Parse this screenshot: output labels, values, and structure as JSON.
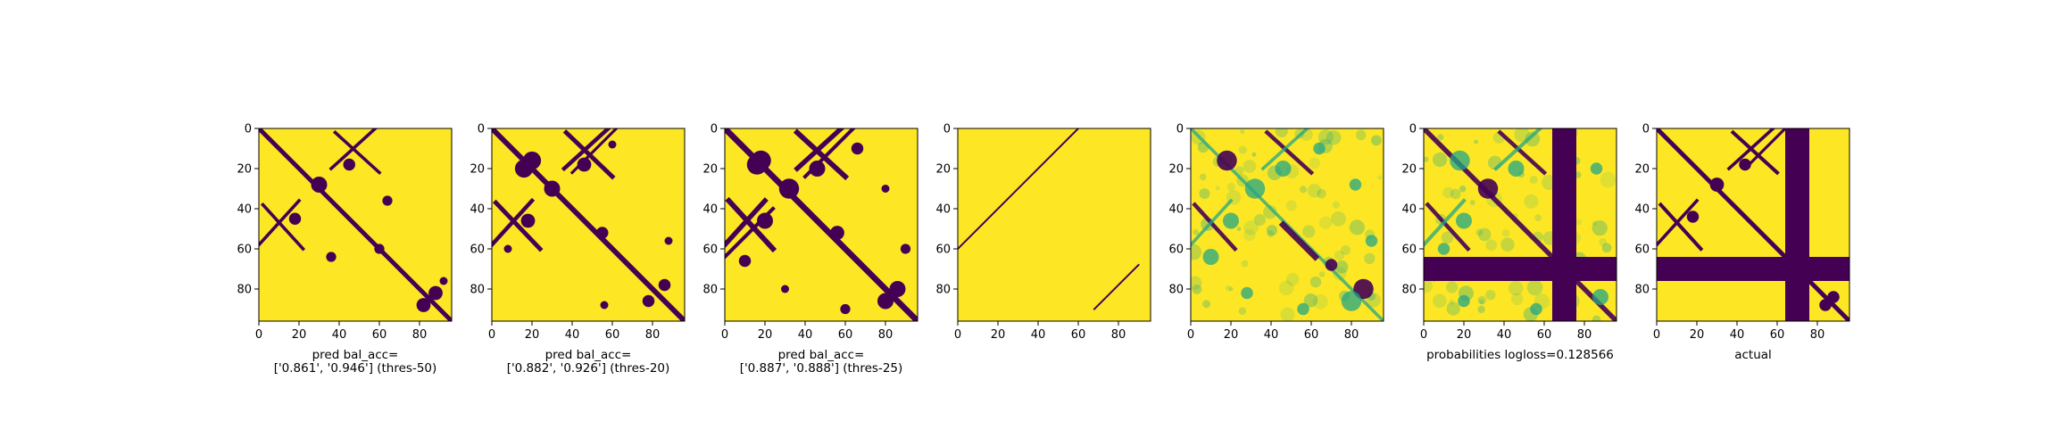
{
  "colors": {
    "low": "#440154",
    "mid": "#21a585",
    "high": "#fde725",
    "frame": "#000000"
  },
  "chart_data": [
    {
      "type": "heatmap",
      "kind": "binary",
      "caption_lines": [
        "pred bal_acc=",
        "['0.861', '0.946'] (thres-50)"
      ],
      "xlim": [
        0,
        96
      ],
      "ylim": [
        96,
        0
      ],
      "xticks": [
        "0",
        "20",
        "40",
        "60",
        "80"
      ],
      "yticks": [
        "0",
        "20",
        "40",
        "60",
        "80"
      ],
      "contacts": [
        {
          "type": "line",
          "from": [
            0,
            0
          ],
          "to": [
            96,
            96
          ],
          "width": 2.2
        },
        {
          "type": "line",
          "from": [
            38,
            2
          ],
          "to": [
            60,
            22
          ],
          "width": 1.6
        },
        {
          "type": "line",
          "from": [
            2,
            38
          ],
          "to": [
            22,
            60
          ],
          "width": 1.6
        },
        {
          "type": "line",
          "from": [
            36,
            20
          ],
          "to": [
            58,
            0
          ],
          "width": 1.6
        },
        {
          "type": "line",
          "from": [
            20,
            36
          ],
          "to": [
            0,
            58
          ],
          "width": 1.6
        },
        {
          "type": "blob",
          "c": [
            30,
            28
          ],
          "r": 4
        },
        {
          "type": "blob",
          "c": [
            45,
            18
          ],
          "r": 3
        },
        {
          "type": "blob",
          "c": [
            18,
            45
          ],
          "r": 3
        },
        {
          "type": "blob",
          "c": [
            60,
            60
          ],
          "r": 2.5
        },
        {
          "type": "blob",
          "c": [
            88,
            82
          ],
          "r": 3.5
        },
        {
          "type": "blob",
          "c": [
            82,
            88
          ],
          "r": 3.5
        },
        {
          "type": "blob",
          "c": [
            92,
            76
          ],
          "r": 2
        },
        {
          "type": "blob",
          "c": [
            64,
            36
          ],
          "r": 2.5
        },
        {
          "type": "blob",
          "c": [
            36,
            64
          ],
          "r": 2.5
        }
      ]
    },
    {
      "type": "heatmap",
      "kind": "binary",
      "caption_lines": [
        "pred bal_acc=",
        "['0.882', '0.926'] (thres-20)"
      ],
      "xlim": [
        0,
        96
      ],
      "ylim": [
        96,
        0
      ],
      "xticks": [
        "0",
        "20",
        "40",
        "60",
        "80"
      ],
      "yticks": [
        "0",
        "20",
        "40",
        "60",
        "80"
      ],
      "contacts": [
        {
          "type": "line",
          "from": [
            0,
            0
          ],
          "to": [
            96,
            96
          ],
          "width": 2.6
        },
        {
          "type": "line",
          "from": [
            37,
            2
          ],
          "to": [
            60,
            24
          ],
          "width": 2.2
        },
        {
          "type": "line",
          "from": [
            2,
            37
          ],
          "to": [
            24,
            60
          ],
          "width": 2.2
        },
        {
          "type": "line",
          "from": [
            36,
            20
          ],
          "to": [
            58,
            0
          ],
          "width": 2
        },
        {
          "type": "line",
          "from": [
            20,
            36
          ],
          "to": [
            0,
            58
          ],
          "width": 2
        },
        {
          "type": "line",
          "from": [
            62,
            0
          ],
          "to": [
            40,
            22
          ],
          "width": 1.4
        },
        {
          "type": "blob",
          "c": [
            20,
            16
          ],
          "r": 4.5
        },
        {
          "type": "blob",
          "c": [
            16,
            20
          ],
          "r": 4.5
        },
        {
          "type": "blob",
          "c": [
            30,
            30
          ],
          "r": 4
        },
        {
          "type": "blob",
          "c": [
            46,
            18
          ],
          "r": 3.5
        },
        {
          "type": "blob",
          "c": [
            18,
            46
          ],
          "r": 3.5
        },
        {
          "type": "blob",
          "c": [
            86,
            78
          ],
          "r": 3
        },
        {
          "type": "blob",
          "c": [
            78,
            86
          ],
          "r": 3
        },
        {
          "type": "blob",
          "c": [
            55,
            52
          ],
          "r": 3
        },
        {
          "type": "blob",
          "c": [
            88,
            56
          ],
          "r": 2
        },
        {
          "type": "blob",
          "c": [
            56,
            88
          ],
          "r": 2
        },
        {
          "type": "blob",
          "c": [
            8,
            60
          ],
          "r": 2
        },
        {
          "type": "blob",
          "c": [
            60,
            8
          ],
          "r": 2
        }
      ]
    },
    {
      "type": "heatmap",
      "kind": "binary",
      "caption_lines": [
        "pred bal_acc=",
        "['0.887', '0.888'] (thres-25)"
      ],
      "xlim": [
        0,
        96
      ],
      "ylim": [
        96,
        0
      ],
      "xticks": [
        "0",
        "20",
        "40",
        "60",
        "80"
      ],
      "yticks": [
        "0",
        "20",
        "40",
        "60",
        "80"
      ],
      "contacts": [
        {
          "type": "line",
          "from": [
            0,
            0
          ],
          "to": [
            96,
            96
          ],
          "width": 3
        },
        {
          "type": "line",
          "from": [
            36,
            2
          ],
          "to": [
            60,
            24
          ],
          "width": 2.6
        },
        {
          "type": "line",
          "from": [
            2,
            36
          ],
          "to": [
            24,
            60
          ],
          "width": 2.6
        },
        {
          "type": "line",
          "from": [
            36,
            20
          ],
          "to": [
            58,
            0
          ],
          "width": 2.4
        },
        {
          "type": "line",
          "from": [
            20,
            36
          ],
          "to": [
            0,
            58
          ],
          "width": 2.4
        },
        {
          "type": "line",
          "from": [
            64,
            0
          ],
          "to": [
            40,
            24
          ],
          "width": 1.8
        },
        {
          "type": "line",
          "from": [
            0,
            64
          ],
          "to": [
            24,
            40
          ],
          "width": 1.8
        },
        {
          "type": "blob",
          "c": [
            18,
            16
          ],
          "r": 5
        },
        {
          "type": "blob",
          "c": [
            16,
            18
          ],
          "r": 5
        },
        {
          "type": "blob",
          "c": [
            32,
            30
          ],
          "r": 5
        },
        {
          "type": "blob",
          "c": [
            46,
            20
          ],
          "r": 4
        },
        {
          "type": "blob",
          "c": [
            20,
            46
          ],
          "r": 4
        },
        {
          "type": "blob",
          "c": [
            86,
            80
          ],
          "r": 4
        },
        {
          "type": "blob",
          "c": [
            80,
            86
          ],
          "r": 4
        },
        {
          "type": "blob",
          "c": [
            56,
            52
          ],
          "r": 3.5
        },
        {
          "type": "blob",
          "c": [
            90,
            60
          ],
          "r": 2.5
        },
        {
          "type": "blob",
          "c": [
            60,
            90
          ],
          "r": 2.5
        },
        {
          "type": "blob",
          "c": [
            10,
            66
          ],
          "r": 3
        },
        {
          "type": "blob",
          "c": [
            66,
            10
          ],
          "r": 3
        },
        {
          "type": "blob",
          "c": [
            30,
            80
          ],
          "r": 2
        },
        {
          "type": "blob",
          "c": [
            80,
            30
          ],
          "r": 2
        }
      ]
    },
    {
      "type": "heatmap",
      "kind": "binary",
      "caption_lines": [],
      "xlim": [
        0,
        96
      ],
      "ylim": [
        96,
        0
      ],
      "xticks": [
        "0",
        "20",
        "40",
        "60",
        "80"
      ],
      "yticks": [
        "0",
        "20",
        "40",
        "60",
        "80"
      ],
      "contacts": [
        {
          "type": "line",
          "from": [
            60,
            0
          ],
          "to": [
            0,
            60
          ],
          "width": 0.9
        },
        {
          "type": "line",
          "from": [
            90,
            68
          ],
          "to": [
            68,
            90
          ],
          "width": 0.9
        }
      ]
    },
    {
      "type": "heatmap",
      "kind": "probability",
      "caption_lines": [],
      "xlim": [
        0,
        96
      ],
      "ylim": [
        96,
        0
      ],
      "xticks": [
        "0",
        "20",
        "40",
        "60",
        "80"
      ],
      "yticks": [
        "0",
        "20",
        "40",
        "60",
        "80"
      ],
      "contacts": [
        {
          "type": "line",
          "from": [
            0,
            0
          ],
          "to": [
            96,
            96
          ],
          "width": 1.6,
          "level": "mid"
        },
        {
          "type": "line",
          "from": [
            38,
            2
          ],
          "to": [
            60,
            22
          ],
          "width": 2,
          "level": "low"
        },
        {
          "type": "line",
          "from": [
            2,
            38
          ],
          "to": [
            22,
            60
          ],
          "width": 2,
          "level": "low"
        },
        {
          "type": "line",
          "from": [
            36,
            20
          ],
          "to": [
            58,
            0
          ],
          "width": 1.6,
          "level": "mid"
        },
        {
          "type": "line",
          "from": [
            20,
            36
          ],
          "to": [
            0,
            58
          ],
          "width": 1.6,
          "level": "mid"
        },
        {
          "type": "line",
          "from": [
            46,
            48
          ],
          "to": [
            62,
            64
          ],
          "width": 3,
          "level": "low"
        },
        {
          "type": "blob",
          "c": [
            18,
            16
          ],
          "r": 5,
          "level": "low"
        },
        {
          "type": "blob",
          "c": [
            32,
            30
          ],
          "r": 5,
          "level": "mid"
        },
        {
          "type": "blob",
          "c": [
            46,
            20
          ],
          "r": 4,
          "level": "mid"
        },
        {
          "type": "blob",
          "c": [
            20,
            46
          ],
          "r": 4,
          "level": "mid"
        },
        {
          "type": "blob",
          "c": [
            86,
            80
          ],
          "r": 5,
          "level": "low"
        },
        {
          "type": "blob",
          "c": [
            80,
            86
          ],
          "r": 5,
          "level": "mid"
        },
        {
          "type": "blob",
          "c": [
            70,
            68
          ],
          "r": 3,
          "level": "low"
        },
        {
          "type": "blob",
          "c": [
            90,
            56
          ],
          "r": 3,
          "level": "mid"
        },
        {
          "type": "blob",
          "c": [
            56,
            90
          ],
          "r": 3,
          "level": "mid"
        },
        {
          "type": "blob",
          "c": [
            10,
            64
          ],
          "r": 4,
          "level": "mid"
        },
        {
          "type": "blob",
          "c": [
            64,
            10
          ],
          "r": 3,
          "level": "mid"
        },
        {
          "type": "blob",
          "c": [
            28,
            82
          ],
          "r": 3,
          "level": "mid"
        },
        {
          "type": "blob",
          "c": [
            82,
            28
          ],
          "r": 3,
          "level": "mid"
        }
      ]
    },
    {
      "type": "heatmap",
      "kind": "probability-masked",
      "caption_lines": [
        "probabilities logloss=0.128566"
      ],
      "xlim": [
        0,
        96
      ],
      "ylim": [
        96,
        0
      ],
      "xticks": [
        "0",
        "20",
        "40",
        "60",
        "80"
      ],
      "yticks": [
        "0",
        "20",
        "40",
        "60",
        "80"
      ],
      "masked_rows": [
        64,
        76
      ],
      "masked_cols": [
        64,
        76
      ],
      "contacts": [
        {
          "type": "line",
          "from": [
            0,
            0
          ],
          "to": [
            96,
            96
          ],
          "width": 2.4,
          "level": "low"
        },
        {
          "type": "line",
          "from": [
            38,
            2
          ],
          "to": [
            60,
            22
          ],
          "width": 2,
          "level": "low"
        },
        {
          "type": "line",
          "from": [
            2,
            38
          ],
          "to": [
            22,
            60
          ],
          "width": 2,
          "level": "low"
        },
        {
          "type": "line",
          "from": [
            36,
            20
          ],
          "to": [
            58,
            0
          ],
          "width": 1.8,
          "level": "mid"
        },
        {
          "type": "line",
          "from": [
            20,
            36
          ],
          "to": [
            0,
            58
          ],
          "width": 1.8,
          "level": "mid"
        },
        {
          "type": "blob",
          "c": [
            18,
            16
          ],
          "r": 5,
          "level": "mid"
        },
        {
          "type": "blob",
          "c": [
            32,
            30
          ],
          "r": 5,
          "level": "low"
        },
        {
          "type": "blob",
          "c": [
            46,
            20
          ],
          "r": 4,
          "level": "mid"
        },
        {
          "type": "blob",
          "c": [
            20,
            46
          ],
          "r": 4,
          "level": "mid"
        },
        {
          "type": "blob",
          "c": [
            88,
            84
          ],
          "r": 4,
          "level": "mid"
        },
        {
          "type": "blob",
          "c": [
            86,
            20
          ],
          "r": 3,
          "level": "mid"
        },
        {
          "type": "blob",
          "c": [
            20,
            86
          ],
          "r": 3,
          "level": "mid"
        },
        {
          "type": "blob",
          "c": [
            10,
            60
          ],
          "r": 3,
          "level": "mid"
        },
        {
          "type": "blob",
          "c": [
            56,
            90
          ],
          "r": 3,
          "level": "mid"
        }
      ]
    },
    {
      "type": "heatmap",
      "kind": "binary-masked",
      "caption_lines": [
        "actual"
      ],
      "xlim": [
        0,
        96
      ],
      "ylim": [
        96,
        0
      ],
      "xticks": [
        "0",
        "20",
        "40",
        "60",
        "80"
      ],
      "yticks": [
        "0",
        "20",
        "40",
        "60",
        "80"
      ],
      "masked_rows": [
        64,
        76
      ],
      "masked_cols": [
        64,
        76
      ],
      "contacts": [
        {
          "type": "line",
          "from": [
            0,
            0
          ],
          "to": [
            96,
            96
          ],
          "width": 2.2
        },
        {
          "type": "line",
          "from": [
            38,
            2
          ],
          "to": [
            60,
            22
          ],
          "width": 1.8
        },
        {
          "type": "line",
          "from": [
            2,
            38
          ],
          "to": [
            22,
            60
          ],
          "width": 1.8
        },
        {
          "type": "line",
          "from": [
            36,
            20
          ],
          "to": [
            58,
            0
          ],
          "width": 1.6
        },
        {
          "type": "line",
          "from": [
            20,
            36
          ],
          "to": [
            0,
            58
          ],
          "width": 1.6
        },
        {
          "type": "line",
          "from": [
            64,
            0
          ],
          "to": [
            46,
            18
          ],
          "width": 1.4
        },
        {
          "type": "blob",
          "c": [
            30,
            28
          ],
          "r": 3.5
        },
        {
          "type": "blob",
          "c": [
            44,
            18
          ],
          "r": 3
        },
        {
          "type": "blob",
          "c": [
            18,
            44
          ],
          "r": 3
        },
        {
          "type": "blob",
          "c": [
            88,
            84
          ],
          "r": 3
        },
        {
          "type": "blob",
          "c": [
            84,
            88
          ],
          "r": 3
        }
      ]
    }
  ]
}
